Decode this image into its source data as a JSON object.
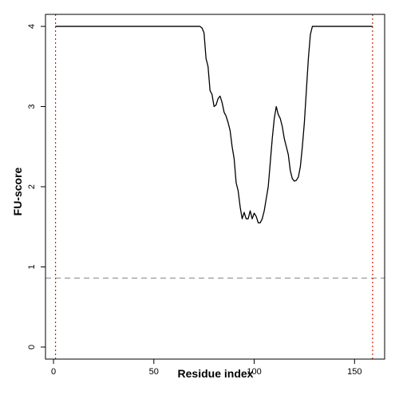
{
  "chart_data": {
    "type": "line",
    "title": "",
    "xlabel": "Residue index",
    "ylabel": "FU-score",
    "xlim": [
      -4,
      165
    ],
    "ylim": [
      -0.15,
      4.15
    ],
    "x_ticks": [
      0,
      50,
      100,
      150
    ],
    "y_ticks": [
      0,
      1,
      2,
      3,
      4
    ],
    "x_tick_labels": [
      "0",
      "50",
      "100",
      "150"
    ],
    "y_tick_labels": [
      "0",
      "1",
      "2",
      "3",
      "4"
    ],
    "grid": false,
    "legend": "none",
    "series": [
      {
        "color": "#000000",
        "x": [
          1,
          73,
          74,
          75,
          76,
          77,
          78,
          79,
          80,
          81,
          82,
          83,
          84,
          85,
          86,
          87,
          88,
          89,
          90,
          91,
          92,
          93,
          94,
          95,
          96,
          97,
          98,
          99,
          100,
          101,
          102,
          103,
          104,
          105,
          106,
          107,
          108,
          109,
          110,
          111,
          112,
          113,
          114,
          115,
          116,
          117,
          118,
          119,
          120,
          121,
          122,
          123,
          124,
          125,
          126,
          127,
          128,
          129,
          130,
          131,
          132,
          133,
          134,
          135,
          136,
          137,
          138,
          159
        ],
        "y": [
          4,
          4,
          3.98,
          3.92,
          3.6,
          3.5,
          3.2,
          3.15,
          3.0,
          3.02,
          3.1,
          3.13,
          3.05,
          2.93,
          2.88,
          2.8,
          2.7,
          2.5,
          2.35,
          2.05,
          1.95,
          1.75,
          1.6,
          1.68,
          1.6,
          1.6,
          1.7,
          1.6,
          1.67,
          1.63,
          1.55,
          1.55,
          1.6,
          1.7,
          1.85,
          2.0,
          2.3,
          2.6,
          2.85,
          3.0,
          2.9,
          2.85,
          2.75,
          2.6,
          2.5,
          2.4,
          2.2,
          2.1,
          2.07,
          2.08,
          2.12,
          2.25,
          2.5,
          2.8,
          3.2,
          3.6,
          3.9,
          4.0,
          4.0,
          4.0,
          4.0,
          4.0,
          4.0,
          4.0,
          4.0,
          4.0,
          4.0,
          4.0
        ]
      }
    ],
    "reference_lines": {
      "threshold_y": 0.86,
      "threshold_color": "#999999",
      "vertical_x": [
        1,
        159
      ],
      "vertical_color": "#cc2200"
    }
  }
}
